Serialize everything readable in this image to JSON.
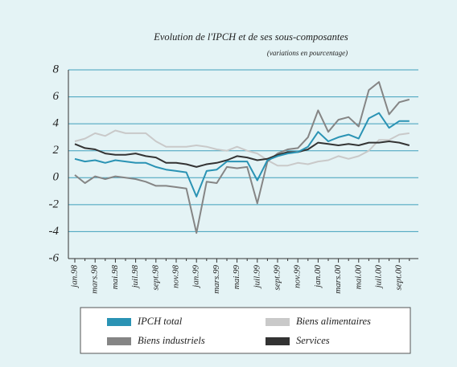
{
  "chart_data": {
    "type": "line",
    "title": "Evolution de l'IPCH et de ses sous-composantes",
    "subtitle": "(variations en pourcentage)",
    "categories": [
      "jan.98",
      null,
      "mars.98",
      null,
      "mai.98",
      null,
      "juil.98",
      null,
      "sept.98",
      null,
      "nov.98",
      null,
      "jan.99",
      null,
      "mars.99",
      null,
      "mai.99",
      null,
      "juil.99",
      null,
      "sept.99",
      null,
      "nov.99",
      null,
      "jan.00",
      null,
      "mars.00",
      null,
      "mai.00",
      null,
      "juil.00",
      null,
      "sept.00",
      null
    ],
    "series": [
      {
        "name": "IPCH total",
        "color": "#2a93b4",
        "values": [
          1.4,
          1.2,
          1.3,
          1.1,
          1.3,
          1.2,
          1.1,
          1.1,
          0.8,
          0.6,
          0.5,
          0.4,
          -1.4,
          0.5,
          0.6,
          1.2,
          1.2,
          1.2,
          -0.2,
          1.3,
          1.6,
          1.8,
          1.9,
          2.3,
          3.4,
          2.7,
          3.0,
          3.2,
          2.9,
          4.4,
          4.8,
          3.7,
          4.2,
          4.2
        ]
      },
      {
        "name": "Biens alimentaires",
        "color": "#c9c9c9",
        "values": [
          2.7,
          2.9,
          3.3,
          3.1,
          3.5,
          3.3,
          3.3,
          3.3,
          2.7,
          2.3,
          2.3,
          2.3,
          2.4,
          2.3,
          2.1,
          2.0,
          2.3,
          2.0,
          1.8,
          1.3,
          0.9,
          0.9,
          1.1,
          1.0,
          1.2,
          1.3,
          1.6,
          1.4,
          1.6,
          2.0,
          2.8,
          2.8,
          3.2,
          3.3
        ]
      },
      {
        "name": "Biens industriels",
        "color": "#858585",
        "values": [
          0.2,
          -0.4,
          0.1,
          -0.1,
          0.1,
          0.0,
          -0.1,
          -0.3,
          -0.6,
          -0.6,
          -0.7,
          -0.8,
          -4.1,
          -0.3,
          -0.4,
          0.8,
          0.7,
          0.8,
          -1.9,
          1.2,
          1.8,
          2.1,
          2.2,
          3.0,
          5.0,
          3.4,
          4.3,
          4.5,
          3.8,
          6.5,
          7.1,
          4.7,
          5.6,
          5.8
        ]
      },
      {
        "name": "Services",
        "color": "#333333",
        "values": [
          2.5,
          2.2,
          2.1,
          1.8,
          1.7,
          1.7,
          1.8,
          1.6,
          1.5,
          1.1,
          1.1,
          1.0,
          0.8,
          1.0,
          1.1,
          1.3,
          1.6,
          1.5,
          1.3,
          1.4,
          1.7,
          1.9,
          1.9,
          2.1,
          2.6,
          2.5,
          2.4,
          2.5,
          2.4,
          2.6,
          2.6,
          2.7,
          2.6,
          2.4
        ]
      }
    ],
    "ylim": [
      -6,
      8
    ],
    "yticks": [
      -6,
      -4,
      -2,
      0,
      2,
      4,
      6,
      8
    ],
    "grid": true
  }
}
